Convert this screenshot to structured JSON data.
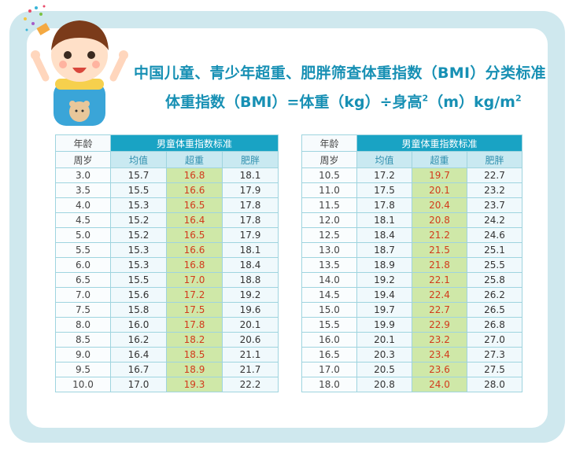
{
  "title": "中国儿童、青少年超重、肥胖筛查体重指数（BMI）分类标准",
  "formula": {
    "main": "体重指数（BMI）=体重（kg）÷身高",
    "sup": "2",
    "tail": "（m）kg/m",
    "tail_sup": "2"
  },
  "table_header": {
    "age": "年龄",
    "title": "男童体重指数标准",
    "unit": "周岁",
    "mean": "均值",
    "overweight": "超重",
    "obese": "肥胖"
  },
  "colors": {
    "header": "#19a3c4",
    "overweight_bg": "#cfe8a8",
    "overweight_text": "#d23a1c",
    "border": "#9fd4df"
  },
  "left_rows": [
    {
      "age": "3.0",
      "mean": "15.7",
      "ow": "16.8",
      "ob": "18.1"
    },
    {
      "age": "3.5",
      "mean": "15.5",
      "ow": "16.6",
      "ob": "17.9"
    },
    {
      "age": "4.0",
      "mean": "15.3",
      "ow": "16.5",
      "ob": "17.8"
    },
    {
      "age": "4.5",
      "mean": "15.2",
      "ow": "16.4",
      "ob": "17.8"
    },
    {
      "age": "5.0",
      "mean": "15.2",
      "ow": "16.5",
      "ob": "17.9"
    },
    {
      "age": "5.5",
      "mean": "15.3",
      "ow": "16.6",
      "ob": "18.1"
    },
    {
      "age": "6.0",
      "mean": "15.3",
      "ow": "16.8",
      "ob": "18.4"
    },
    {
      "age": "6.5",
      "mean": "15.5",
      "ow": "17.0",
      "ob": "18.8"
    },
    {
      "age": "7.0",
      "mean": "15.6",
      "ow": "17.2",
      "ob": "19.2"
    },
    {
      "age": "7.5",
      "mean": "15.8",
      "ow": "17.5",
      "ob": "19.6"
    },
    {
      "age": "8.0",
      "mean": "16.0",
      "ow": "17.8",
      "ob": "20.1"
    },
    {
      "age": "8.5",
      "mean": "16.2",
      "ow": "18.2",
      "ob": "20.6"
    },
    {
      "age": "9.0",
      "mean": "16.4",
      "ow": "18.5",
      "ob": "21.1"
    },
    {
      "age": "9.5",
      "mean": "16.7",
      "ow": "18.9",
      "ob": "21.7"
    },
    {
      "age": "10.0",
      "mean": "17.0",
      "ow": "19.3",
      "ob": "22.2"
    }
  ],
  "right_rows": [
    {
      "age": "10.5",
      "mean": "17.2",
      "ow": "19.7",
      "ob": "22.7"
    },
    {
      "age": "11.0",
      "mean": "17.5",
      "ow": "20.1",
      "ob": "23.2"
    },
    {
      "age": "11.5",
      "mean": "17.8",
      "ow": "20.4",
      "ob": "23.7"
    },
    {
      "age": "12.0",
      "mean": "18.1",
      "ow": "20.8",
      "ob": "24.2"
    },
    {
      "age": "12.5",
      "mean": "18.4",
      "ow": "21.2",
      "ob": "24.6"
    },
    {
      "age": "13.0",
      "mean": "18.7",
      "ow": "21.5",
      "ob": "25.1"
    },
    {
      "age": "13.5",
      "mean": "18.9",
      "ow": "21.8",
      "ob": "25.5"
    },
    {
      "age": "14.0",
      "mean": "19.2",
      "ow": "22.1",
      "ob": "25.8"
    },
    {
      "age": "14.5",
      "mean": "19.4",
      "ow": "22.4",
      "ob": "26.2"
    },
    {
      "age": "15.0",
      "mean": "19.7",
      "ow": "22.7",
      "ob": "26.5"
    },
    {
      "age": "15.5",
      "mean": "19.9",
      "ow": "22.9",
      "ob": "26.8"
    },
    {
      "age": "16.0",
      "mean": "20.1",
      "ow": "23.2",
      "ob": "27.0"
    },
    {
      "age": "16.5",
      "mean": "20.3",
      "ow": "23.4",
      "ob": "27.3"
    },
    {
      "age": "17.0",
      "mean": "20.5",
      "ow": "23.6",
      "ob": "27.5"
    },
    {
      "age": "18.0",
      "mean": "20.8",
      "ow": "24.0",
      "ob": "28.0"
    }
  ]
}
